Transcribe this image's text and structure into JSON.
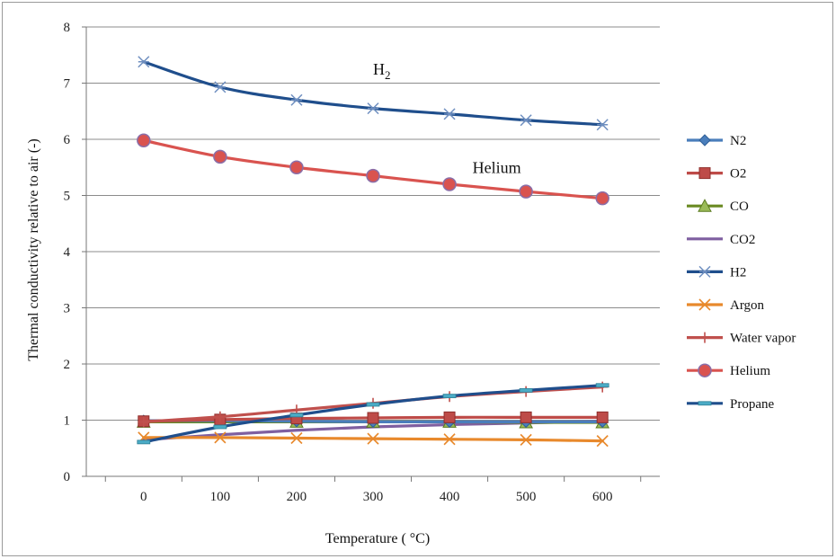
{
  "chart_data": {
    "type": "line",
    "xlabel": "Temperature ( °C)",
    "ylabel": "Thermal conductivity relative to air (-)",
    "x": [
      0,
      100,
      200,
      300,
      400,
      500,
      600
    ],
    "xlim": [
      -75,
      675
    ],
    "ylim": [
      0,
      8
    ],
    "xticks": [
      "0",
      "100",
      "200",
      "300",
      "400",
      "500",
      "600"
    ],
    "yticks": [
      "0",
      "1",
      "2",
      "3",
      "4",
      "5",
      "6",
      "7",
      "8"
    ],
    "grid": "horizontal",
    "legend": "right",
    "series": [
      {
        "name": "N2",
        "color": "#4a7ebb",
        "marker": "diamond",
        "values": [
          0.99,
          0.99,
          0.98,
          0.97,
          0.97,
          0.97,
          0.97
        ]
      },
      {
        "name": "O2",
        "color": "#be4b48",
        "marker": "square",
        "values": [
          0.98,
          1.01,
          1.03,
          1.04,
          1.05,
          1.05,
          1.05
        ]
      },
      {
        "name": "CO",
        "color": "#6a8a22",
        "marker": "triangle",
        "values": [
          0.97,
          0.97,
          0.97,
          0.97,
          0.97,
          0.96,
          0.96
        ]
      },
      {
        "name": "CO2",
        "color": "#7f5fa0",
        "marker": "none",
        "values": [
          0.65,
          0.74,
          0.82,
          0.88,
          0.92,
          0.95,
          0.98
        ]
      },
      {
        "name": "H2",
        "color": "#1f4e8c",
        "marker": "asterisk",
        "values": [
          7.38,
          6.93,
          6.7,
          6.55,
          6.45,
          6.34,
          6.26
        ]
      },
      {
        "name": "Argon",
        "color": "#e8892c",
        "marker": "x",
        "values": [
          0.69,
          0.69,
          0.68,
          0.67,
          0.66,
          0.65,
          0.63
        ]
      },
      {
        "name": "Water vapor",
        "color": "#c0504d",
        "marker": "plus",
        "values": [
          0.97,
          1.06,
          1.18,
          1.3,
          1.42,
          1.51,
          1.59
        ]
      },
      {
        "name": "Helium",
        "color": "#d9534f",
        "marker": "circle",
        "values": [
          5.98,
          5.69,
          5.5,
          5.35,
          5.2,
          5.07,
          4.95
        ]
      },
      {
        "name": "Propane",
        "color": "#1f4e8c",
        "marker": "dash",
        "values": [
          0.61,
          0.88,
          1.09,
          1.28,
          1.43,
          1.53,
          1.62
        ]
      }
    ],
    "annotations": [
      {
        "text": "H",
        "sub": "2",
        "x": 300,
        "y": 7.15
      },
      {
        "text": "Helium",
        "x": 430,
        "y": 5.4
      }
    ]
  }
}
